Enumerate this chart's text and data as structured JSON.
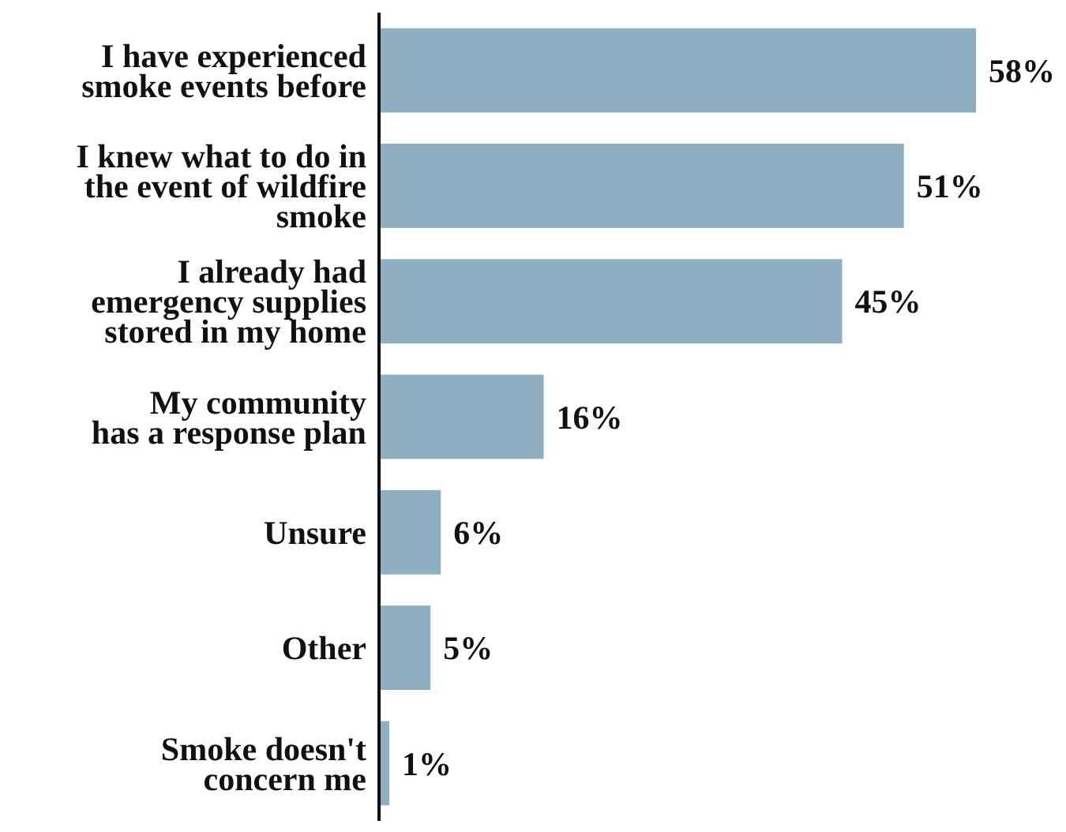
{
  "chart_data": {
    "type": "bar",
    "orientation": "horizontal",
    "categories": [
      "I have experienced\nsmoke events before",
      "I knew what to do in\nthe event of wildfire\nsmoke",
      "I already had\nemergency supplies\nstored in my home",
      "My community\nhas a response plan",
      "Unsure",
      "Other",
      "Smoke doesn't\nconcern me"
    ],
    "values": [
      58,
      51,
      45,
      16,
      6,
      5,
      1
    ],
    "value_labels": [
      "58%",
      "51%",
      "45%",
      "16%",
      "6%",
      "5%",
      "1%"
    ],
    "color": "#8fafc1"
  }
}
